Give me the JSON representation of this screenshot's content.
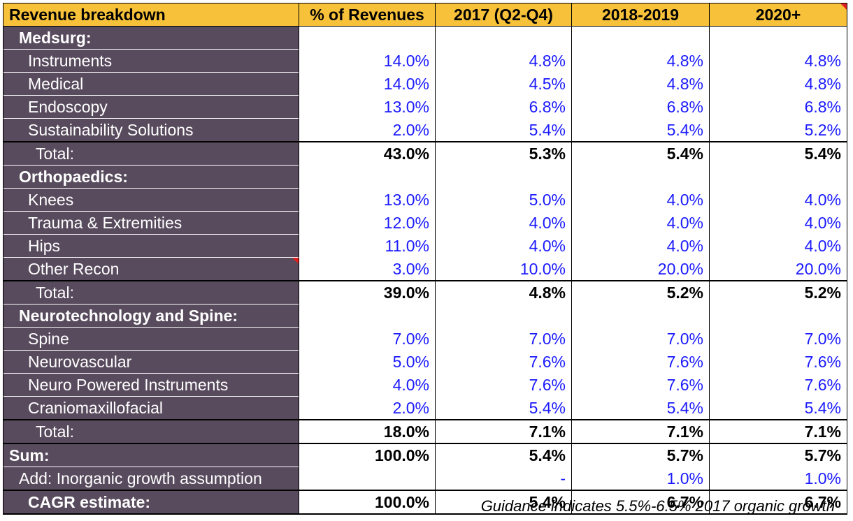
{
  "header": {
    "label": "Revenue breakdown",
    "cols": [
      "% of Revenues",
      "2017 (Q2-Q4)",
      "2018-2019",
      "2020+"
    ]
  },
  "rows": [
    {
      "type": "section",
      "label": "Medsurg:"
    },
    {
      "type": "item",
      "label": "Instruments",
      "values": [
        "14.0%",
        "4.8%",
        "4.8%",
        "4.8%"
      ]
    },
    {
      "type": "item",
      "label": "Medical",
      "values": [
        "14.0%",
        "4.5%",
        "4.8%",
        "4.8%"
      ]
    },
    {
      "type": "item",
      "label": "Endoscopy",
      "values": [
        "13.0%",
        "6.8%",
        "6.8%",
        "6.8%"
      ]
    },
    {
      "type": "item",
      "label": "Sustainability Solutions",
      "values": [
        "2.0%",
        "5.4%",
        "5.4%",
        "5.2%"
      ]
    },
    {
      "type": "total",
      "label": "Total:",
      "values": [
        "43.0%",
        "5.3%",
        "5.4%",
        "5.4%"
      ]
    },
    {
      "type": "section",
      "label": "Orthopaedics:"
    },
    {
      "type": "item",
      "label": "Knees",
      "values": [
        "13.0%",
        "5.0%",
        "4.0%",
        "4.0%"
      ]
    },
    {
      "type": "item",
      "label": "Trauma & Extremities",
      "values": [
        "12.0%",
        "4.0%",
        "4.0%",
        "4.0%"
      ]
    },
    {
      "type": "item",
      "label": "Hips",
      "values": [
        "11.0%",
        "4.0%",
        "4.0%",
        "4.0%"
      ]
    },
    {
      "type": "item",
      "label": "Other Recon",
      "values": [
        "3.0%",
        "10.0%",
        "20.0%",
        "20.0%"
      ]
    },
    {
      "type": "total",
      "label": "Total:",
      "values": [
        "39.0%",
        "4.8%",
        "5.2%",
        "5.2%"
      ]
    },
    {
      "type": "section",
      "label": "Neurotechnology and Spine:"
    },
    {
      "type": "item",
      "label": "Spine",
      "values": [
        "7.0%",
        "7.0%",
        "7.0%",
        "7.0%"
      ]
    },
    {
      "type": "item",
      "label": "Neurovascular",
      "values": [
        "5.0%",
        "7.6%",
        "7.6%",
        "7.6%"
      ]
    },
    {
      "type": "item",
      "label": "Neuro Powered Instruments",
      "values": [
        "4.0%",
        "7.6%",
        "7.6%",
        "7.6%"
      ]
    },
    {
      "type": "item",
      "label": "Craniomaxillofacial",
      "values": [
        "2.0%",
        "5.4%",
        "5.4%",
        "5.4%"
      ]
    },
    {
      "type": "total",
      "label": "Total:",
      "values": [
        "18.0%",
        "7.1%",
        "7.1%",
        "7.1%"
      ]
    }
  ],
  "sum": {
    "label": "Sum:",
    "values": [
      "100.0%",
      "5.4%",
      "5.7%",
      "5.7%"
    ]
  },
  "inorganic": {
    "label": "Add: Inorganic growth assumption",
    "values": [
      "",
      "-",
      "1.0%",
      "1.0%"
    ]
  },
  "cagr": {
    "label": "CAGR estimate:",
    "values": [
      "100.0%",
      "5.4%",
      "6.7%",
      "6.7%"
    ]
  },
  "note": "Guidance indicates 5.5%-6.5% 2017 organic growth",
  "colors": {
    "header_bg": "#f7c13a",
    "label_bg": "#584b5d",
    "input_blue": "#1a1aff",
    "comment_marker": "#e02020"
  }
}
